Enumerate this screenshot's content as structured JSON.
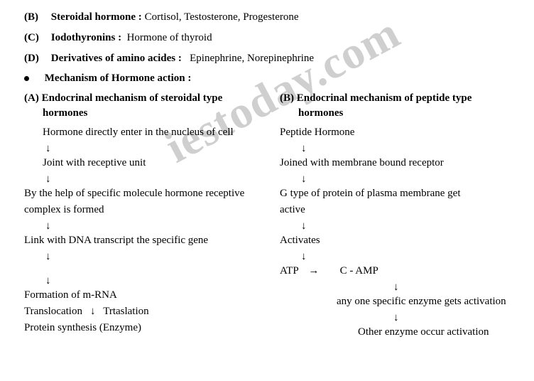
{
  "hormone_types": {
    "b": {
      "letter": "(B)",
      "label": "Steroidal hormone :",
      "examples": "Cortisol, Testosterone, Progesterone"
    },
    "c": {
      "letter": "(C)",
      "label": "Iodothyronins :",
      "examples": "Hormone of thyroid"
    },
    "d": {
      "letter": "(D)",
      "label": "Derivatives of amino acides :",
      "examples": "Epinephrine, Norepinephrine"
    }
  },
  "section_heading": "Mechanism of Hormone action  :",
  "mechanisms": {
    "steroidal": {
      "letter": "(A)",
      "title_l1": "Endocrinal mechanism of steroidal type",
      "title_l2": "hormones",
      "steps": {
        "s1": "Hormone directly enter in the nucleus of cell",
        "s2": "Joint with receptive unit",
        "s3a": "By the help of specific molecule hormone receptive",
        "s3b": "complex is formed",
        "s4": "Link with DNA transcript the specific gene",
        "s5": "Formation of m-RNA",
        "s6a": "Translocation",
        "s6b": "Trtaslation",
        "s7": "Protein synthesis (Enzyme)"
      }
    },
    "peptide": {
      "letter": "(B)",
      "title_l1": "Endocrinal mechanism of peptide type",
      "title_l2": "hormones",
      "steps": {
        "s1": "Peptide Hormone",
        "s2": "Joined with membrane bound receptor",
        "s3a": "G type of protein of plasma membrane get",
        "s3b": "active",
        "s4": "Activates",
        "s5a": "ATP",
        "s5b": "C - AMP",
        "s6": "any one specific enzyme gets activation",
        "s7": "Other enzyme occur activation"
      }
    }
  },
  "glyphs": {
    "down": "↓",
    "right": "→"
  },
  "watermark": "iestoday.com",
  "colors": {
    "text": "#000000",
    "bg": "#ffffff",
    "watermark": "#cfcfcf"
  }
}
